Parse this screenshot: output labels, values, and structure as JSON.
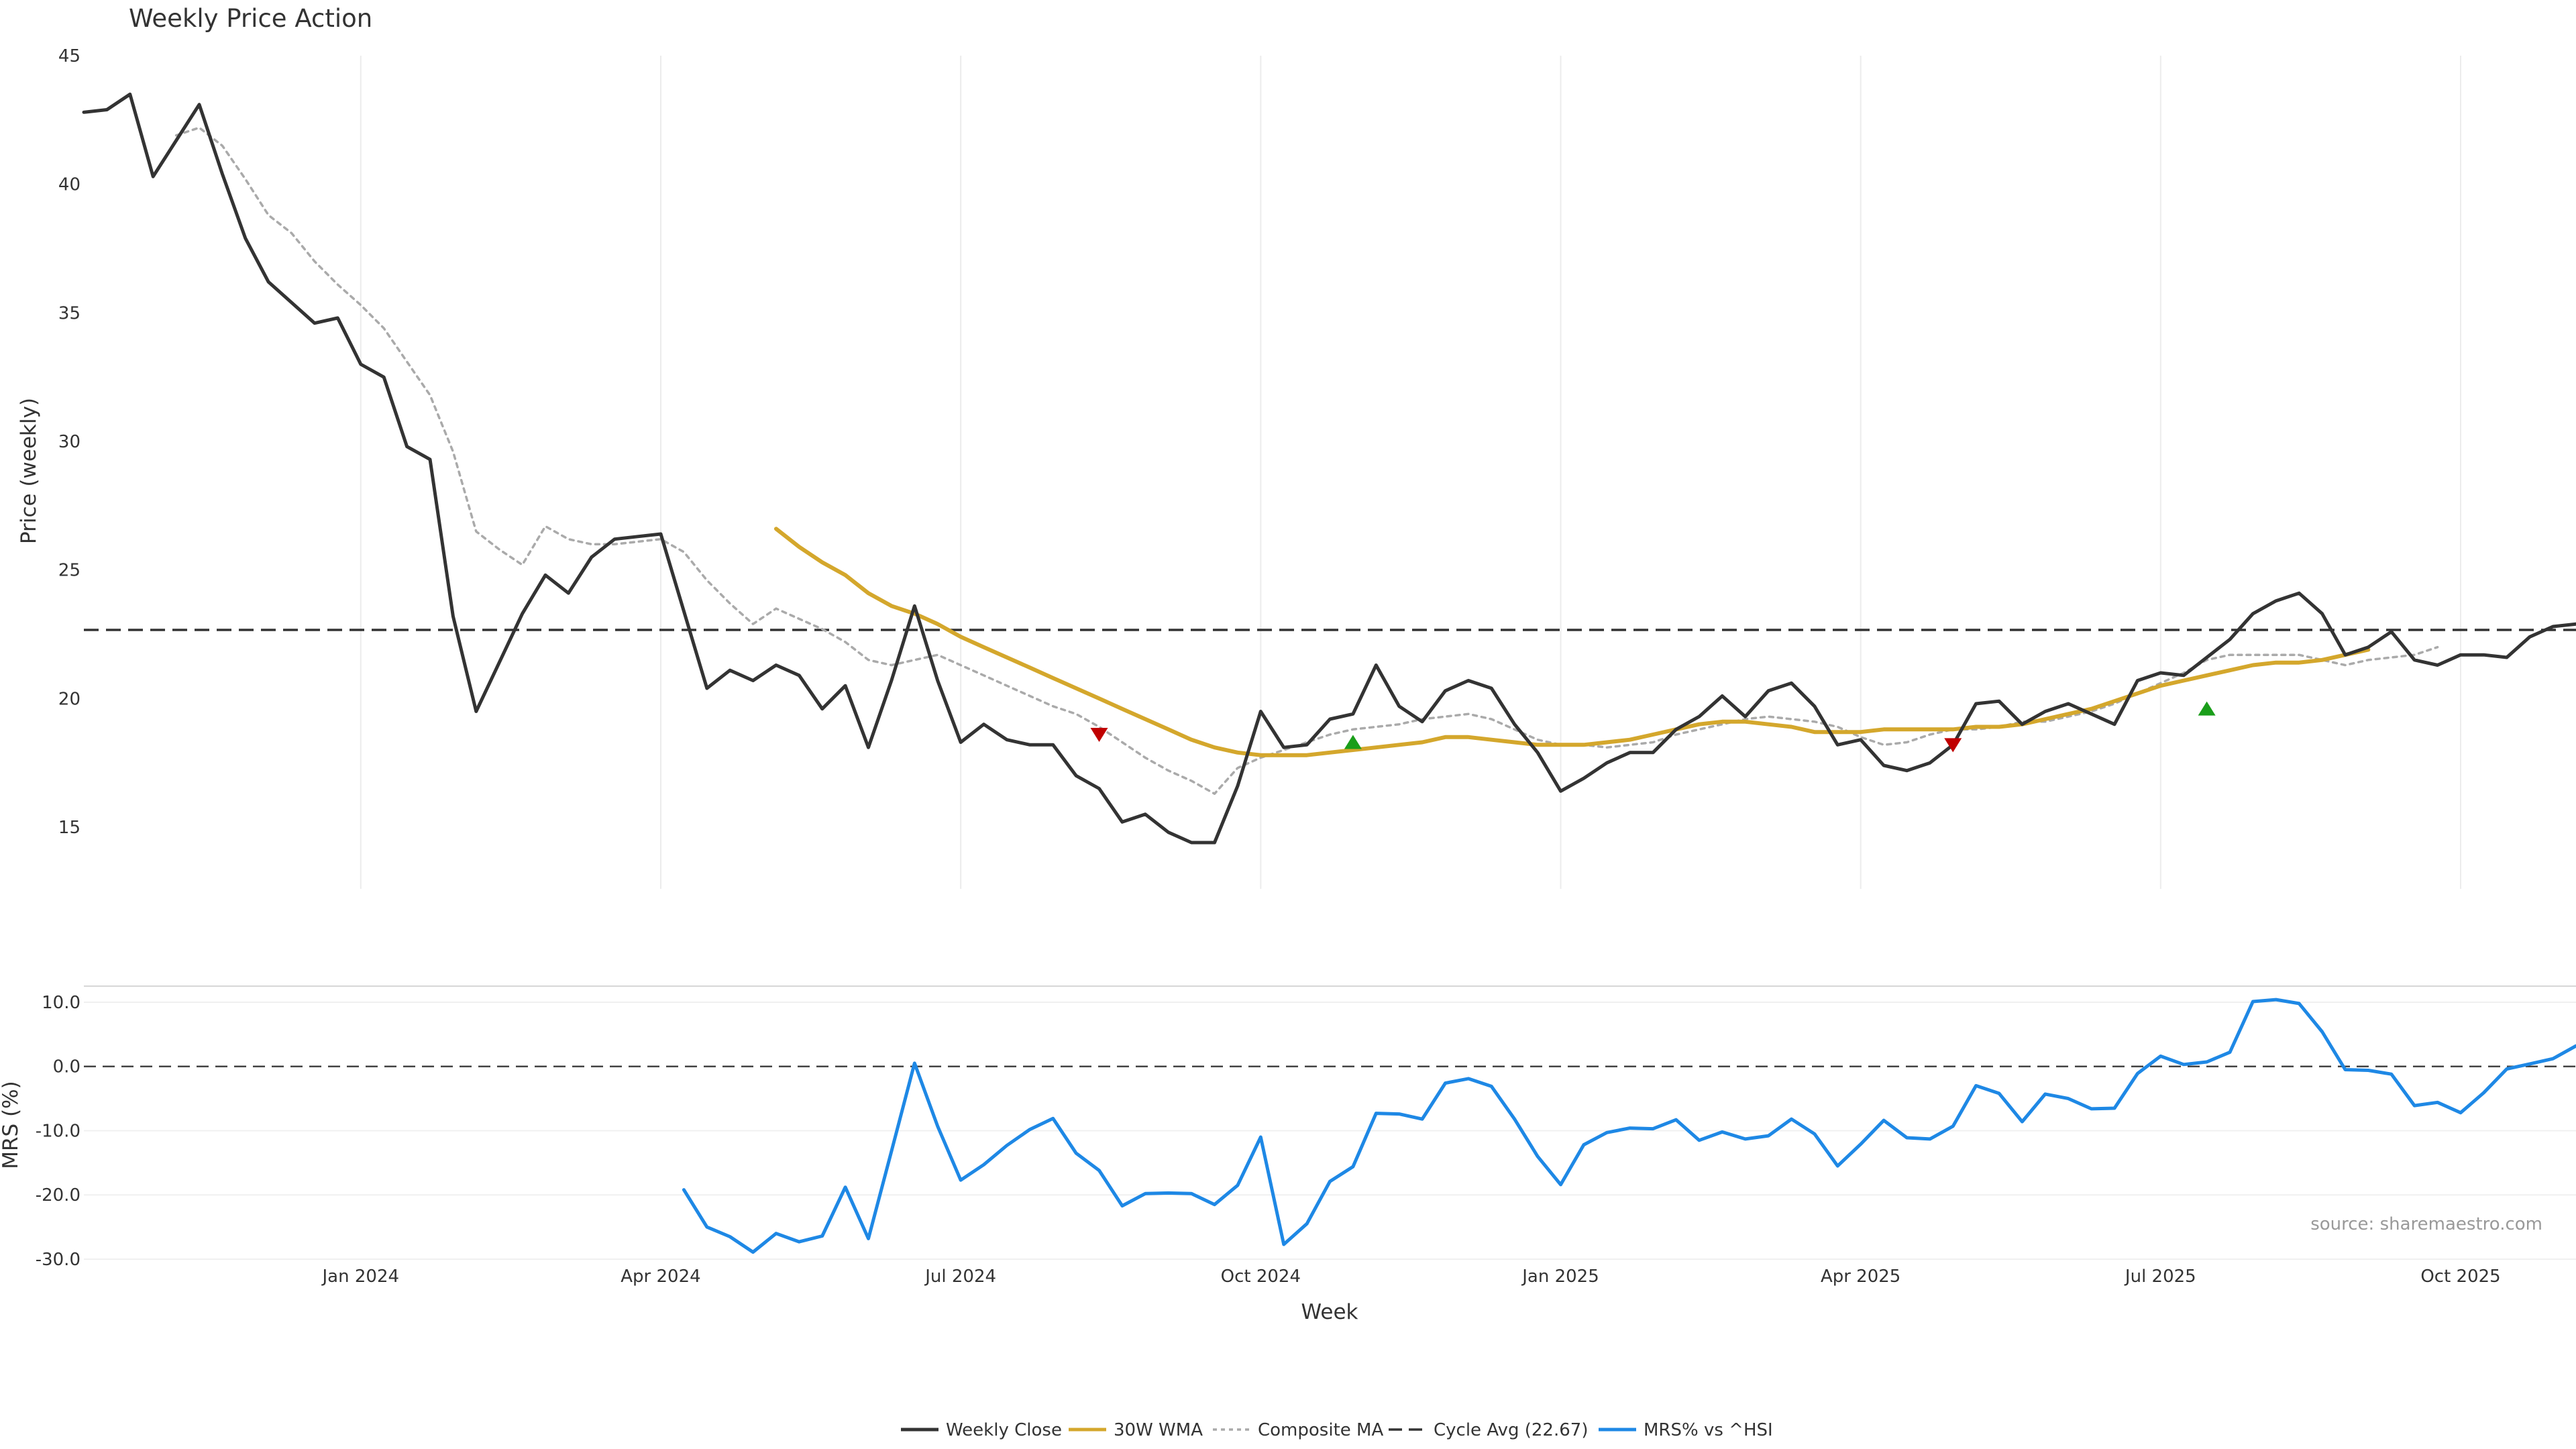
{
  "chart_data": {
    "type": "line",
    "title": "Weekly Price Action",
    "xlabel": "Week",
    "x_ticks": [
      "Jan 2024",
      "Apr 2024",
      "Jul 2024",
      "Oct 2024",
      "Jan 2025",
      "Apr 2025",
      "Jul 2025",
      "Oct 2025"
    ],
    "source": "source: sharemaestro.com",
    "price_panel": {
      "ylabel": "Price (weekly)",
      "ylim": [
        12.6,
        45
      ],
      "y_ticks": [
        15,
        20,
        25,
        30,
        35,
        40,
        45
      ],
      "cycle_avg": 22.67,
      "series": [
        {
          "name": "Weekly Close",
          "color": "#333333",
          "start_week": 0,
          "values": [
            42.8,
            42.9,
            43.5,
            40.3,
            41.7,
            43.1,
            40.4,
            37.9,
            36.2,
            35.4,
            34.6,
            34.8,
            33.0,
            32.5,
            29.8,
            29.3,
            23.2,
            19.5,
            21.4,
            23.3,
            24.8,
            24.1,
            25.5,
            26.2,
            26.3,
            26.4,
            23.4,
            20.4,
            21.1,
            20.7,
            21.3,
            20.9,
            19.6,
            20.5,
            18.1,
            20.7,
            23.6,
            20.7,
            18.3,
            19.0,
            18.4,
            18.2,
            18.2,
            17.0,
            16.5,
            15.2,
            15.5,
            14.8,
            14.4,
            14.4,
            16.6,
            19.5,
            18.1,
            18.2,
            19.2,
            19.4,
            21.3,
            19.7,
            19.1,
            20.3,
            20.7,
            20.4,
            19.0,
            17.9,
            16.4,
            16.9,
            17.5,
            17.9,
            17.9,
            18.8,
            19.3,
            20.1,
            19.3,
            20.3,
            20.6,
            19.7,
            18.2,
            18.4,
            17.4,
            17.2,
            17.5,
            18.2,
            19.8,
            19.9,
            19.0,
            19.5,
            19.8,
            19.4,
            19.0,
            20.7,
            21.0,
            20.9,
            21.6,
            22.3,
            23.3,
            23.8,
            24.1,
            23.3,
            21.7,
            22.0,
            22.6,
            21.5,
            21.3,
            21.7,
            21.7,
            21.6,
            22.4,
            22.8,
            22.9
          ]
        },
        {
          "name": "30W WMA",
          "color": "#D4A72C",
          "start_week": 30,
          "values": [
            26.6,
            25.9,
            25.3,
            24.8,
            24.1,
            23.6,
            23.3,
            22.9,
            22.4,
            22.0,
            21.6,
            21.2,
            20.8,
            20.4,
            20.0,
            19.6,
            19.2,
            18.8,
            18.4,
            18.1,
            17.9,
            17.8,
            17.8,
            17.8,
            17.9,
            18.0,
            18.1,
            18.2,
            18.3,
            18.5,
            18.5,
            18.4,
            18.3,
            18.2,
            18.2,
            18.2,
            18.3,
            18.4,
            18.6,
            18.8,
            19.0,
            19.1,
            19.1,
            19.0,
            18.9,
            18.7,
            18.7,
            18.7,
            18.8,
            18.8,
            18.8,
            18.8,
            18.9,
            18.9,
            19.0,
            19.2,
            19.4,
            19.6,
            19.9,
            20.2,
            20.5,
            20.7,
            20.9,
            21.1,
            21.3,
            21.4,
            21.4,
            21.5,
            21.7,
            21.9
          ]
        },
        {
          "name": "Composite MA",
          "color": "#AAAAAA",
          "start_week": 4,
          "values": [
            41.9,
            42.2,
            41.5,
            40.2,
            38.8,
            38.1,
            37.0,
            36.1,
            35.3,
            34.4,
            33.1,
            31.8,
            29.6,
            26.5,
            25.8,
            25.2,
            26.7,
            26.2,
            26.0,
            26.0,
            26.1,
            26.2,
            25.7,
            24.6,
            23.7,
            22.9,
            23.5,
            23.1,
            22.7,
            22.2,
            21.5,
            21.3,
            21.5,
            21.7,
            21.3,
            20.9,
            20.5,
            20.1,
            19.7,
            19.4,
            18.9,
            18.3,
            17.7,
            17.2,
            16.8,
            16.3,
            17.3,
            17.7,
            18.0,
            18.3,
            18.6,
            18.8,
            18.9,
            19.0,
            19.2,
            19.3,
            19.4,
            19.2,
            18.8,
            18.4,
            18.2,
            18.2,
            18.1,
            18.2,
            18.3,
            18.6,
            18.8,
            19.0,
            19.2,
            19.3,
            19.2,
            19.1,
            18.9,
            18.5,
            18.2,
            18.3,
            18.6,
            18.8,
            18.8,
            18.9,
            19.1,
            19.1,
            19.3,
            19.5,
            19.8,
            20.2,
            20.6,
            21.0,
            21.5,
            21.7,
            21.7,
            21.7,
            21.7,
            21.5,
            21.3,
            21.5,
            21.6,
            21.7,
            22.0
          ]
        }
      ],
      "markers": [
        {
          "type": "sell",
          "week": 44,
          "value": 18.6,
          "color": "#C00000"
        },
        {
          "type": "buy",
          "week": 55,
          "value": 18.3,
          "color": "#1A9E1A"
        },
        {
          "type": "sell",
          "week": 81,
          "value": 18.2,
          "color": "#C00000"
        },
        {
          "type": "buy",
          "week": 92,
          "value": 19.6,
          "color": "#1A9E1A"
        }
      ]
    },
    "mrs_panel": {
      "ylabel": "MRS (%)",
      "ylim": [
        -30,
        12.5
      ],
      "y_ticks": [
        "10.0",
        "0.0",
        "-10.0",
        "-20.0",
        "-30.0"
      ],
      "series": [
        {
          "name": "MRS% vs ^HSI",
          "color": "#1E88E5",
          "start_week": 26,
          "values": [
            -19.2,
            -25.0,
            -26.5,
            -28.9,
            -26.0,
            -27.3,
            -26.4,
            -18.8,
            -26.8,
            -13.2,
            0.5,
            -9.3,
            -17.7,
            -15.3,
            -12.3,
            -9.8,
            -8.1,
            -13.5,
            -16.2,
            -21.7,
            -19.8,
            -19.7,
            -19.8,
            -21.5,
            -18.5,
            -11.0,
            -27.7,
            -24.5,
            -17.9,
            -15.6,
            -7.3,
            -7.4,
            -8.2,
            -2.6,
            -1.9,
            -3.1,
            -8.2,
            -14.0,
            -18.4,
            -12.2,
            -10.3,
            -9.6,
            -9.7,
            -8.3,
            -11.5,
            -10.2,
            -11.3,
            -10.8,
            -8.2,
            -10.5,
            -15.5,
            -12.1,
            -8.4,
            -11.1,
            -11.3,
            -9.3,
            -3.0,
            -4.2,
            -8.6,
            -4.3,
            -5.0,
            -6.6,
            -6.5,
            -1.1,
            1.6,
            0.3,
            0.7,
            2.2,
            10.1,
            10.4,
            9.8,
            5.4,
            -0.5,
            -0.6,
            -1.2,
            -6.1,
            -5.6,
            -7.2,
            -4.1,
            -0.4,
            0.4,
            1.2,
            3.2
          ]
        }
      ],
      "zero_line": 0
    },
    "legend": [
      {
        "label": "Weekly Close",
        "color": "#333333",
        "style": "solid"
      },
      {
        "label": "30W WMA",
        "color": "#D4A72C",
        "style": "solid"
      },
      {
        "label": "Composite MA",
        "color": "#AAAAAA",
        "style": "dotted"
      },
      {
        "label": "Cycle Avg (22.67)",
        "color": "#333333",
        "style": "dashed"
      },
      {
        "label": "MRS% vs ^HSI",
        "color": "#1E88E5",
        "style": "solid"
      }
    ]
  }
}
